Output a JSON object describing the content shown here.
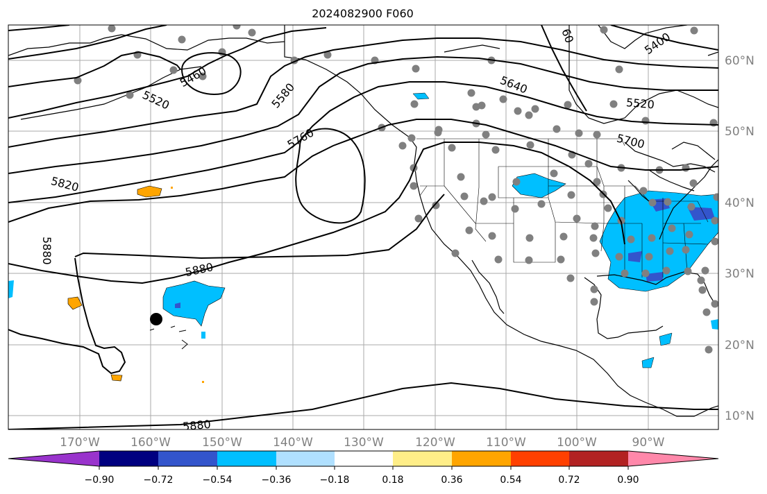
{
  "title": "2024082900 F060",
  "lat_labels": [
    "60°N",
    "50°N",
    "40°N",
    "30°N",
    "20°N",
    "10°N"
  ],
  "lon_labels": [
    "170°W",
    "160°W",
    "150°W",
    "140°W",
    "130°W",
    "120°W",
    "110°W",
    "100°W",
    "90°W"
  ],
  "contour_labels": [
    "5460",
    "5520",
    "5580",
    "5640",
    "5760",
    "5820",
    "5880",
    "5880",
    "5880",
    "5400",
    "5520",
    "5700",
    "60"
  ],
  "colorbar": {
    "ticks": [
      "−0.90",
      "−0.72",
      "−0.54",
      "−0.36",
      "−0.18",
      "0.18",
      "0.36",
      "0.54",
      "0.72",
      "0.90"
    ],
    "colors": [
      "#9933cc",
      "#000080",
      "#3355cc",
      "#00bfff",
      "#b0e0ff",
      "#ffffff",
      "#ffee88",
      "#ffa500",
      "#ff4000",
      "#b22222",
      "#ff88aa"
    ]
  },
  "colors": {
    "grid": "#aaaaaa",
    "coast": "#000000",
    "station": "#808080",
    "contour": "#000000"
  }
}
